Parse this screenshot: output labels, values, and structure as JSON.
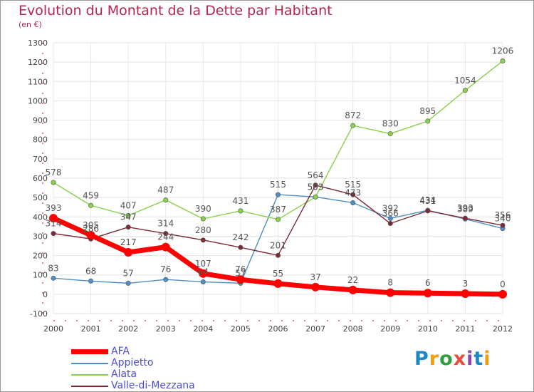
{
  "header": {
    "title": "Evolution du Montant de la Dette par Habitant",
    "unit": "(en €)"
  },
  "logo": {
    "text": "Proxiti",
    "colors": [
      "#1e88c7",
      "#f39c12",
      "#2e9e3e",
      "#e74c3c",
      "#8e44ad",
      "#1e88c7",
      "#f39c12"
    ]
  },
  "chart_data": {
    "type": "line",
    "title": "Evolution du Montant de la Dette par Habitant",
    "subtitle": "(en €)",
    "xlabel": "",
    "ylabel": "",
    "x": [
      2000,
      2001,
      2002,
      2003,
      2004,
      2005,
      2006,
      2007,
      2008,
      2009,
      2010,
      2011,
      2012
    ],
    "ylim": [
      -100,
      1300
    ],
    "yticks": [
      -100,
      0,
      100,
      200,
      300,
      400,
      500,
      600,
      700,
      800,
      900,
      1000,
      1100,
      1200,
      1300
    ],
    "grid": true,
    "legend_position": "bottom-left",
    "series": [
      {
        "name": "AFA",
        "color": "#ff0000",
        "values": [
          393,
          305,
          217,
          244,
          107,
          76,
          55,
          37,
          22,
          8,
          6,
          3,
          0
        ]
      },
      {
        "name": "Appietto",
        "color": "#4d8fc6",
        "values": [
          83,
          68,
          57,
          76,
          64,
          57,
          515,
          503,
          473,
          392,
          434,
          389,
          340
        ]
      },
      {
        "name": "Alata",
        "color": "#88d14b",
        "values": [
          578,
          459,
          407,
          487,
          390,
          431,
          387,
          503,
          872,
          830,
          895,
          1054,
          1206
        ]
      },
      {
        "name": "Valle-di-Mezzana",
        "color": "#7a2a36",
        "values": [
          314,
          286,
          347,
          314,
          280,
          242,
          201,
          564,
          515,
          366,
          431,
          393,
          356
        ]
      }
    ],
    "data_labels": [
      [
        "393",
        "305",
        "217",
        "244",
        "107",
        "76",
        "55",
        "37",
        "22",
        "8",
        "6",
        "3",
        "0"
      ],
      [
        "83",
        "68",
        "57",
        "76",
        "64",
        "57",
        "515",
        "503",
        "473",
        "392",
        "434",
        "389",
        "340"
      ],
      [
        "578",
        "459",
        "407",
        "487",
        "390",
        "431",
        "387",
        "503",
        "872",
        "830",
        "895",
        "1054",
        "1206"
      ],
      [
        "314",
        "286",
        "347",
        "314",
        "280",
        "242",
        "201",
        "564",
        "515",
        "366",
        "431",
        "393",
        "356"
      ]
    ]
  }
}
